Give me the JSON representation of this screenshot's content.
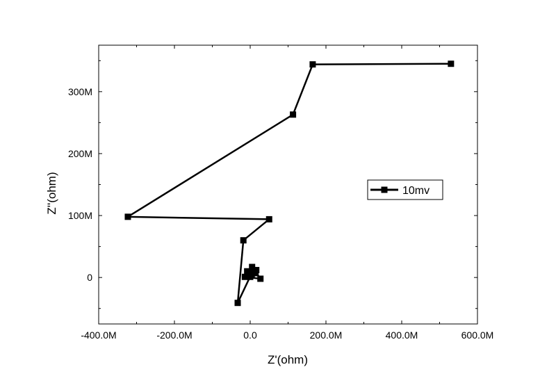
{
  "chart_data": {
    "type": "line",
    "title": "",
    "xlabel": "Z'(ohm)",
    "ylabel": "Z''(ohm)",
    "xlim": [
      -400000000,
      600000000
    ],
    "ylim": [
      -75000000,
      375000000
    ],
    "x_ticks": [
      {
        "value": -400000000,
        "label": "-400.0M"
      },
      {
        "value": -200000000,
        "label": "-200.0M"
      },
      {
        "value": 0,
        "label": "0.0"
      },
      {
        "value": 200000000,
        "label": "200.0M"
      },
      {
        "value": 400000000,
        "label": "400.0M"
      },
      {
        "value": 600000000,
        "label": "600.0M"
      }
    ],
    "y_ticks": [
      {
        "value": 0,
        "label": "0"
      },
      {
        "value": 100000000,
        "label": "100M"
      },
      {
        "value": 200000000,
        "label": "200M"
      },
      {
        "value": 300000000,
        "label": "300M"
      }
    ],
    "grid": false,
    "legend_position": "right",
    "series": [
      {
        "name": "10mv",
        "color": "#000000",
        "marker": "square",
        "points": [
          [
            530000000,
            345000000
          ],
          [
            165000000,
            344000000
          ],
          [
            113000000,
            263000000
          ],
          [
            -323000000,
            98000000
          ],
          [
            50000000,
            94000000
          ],
          [
            -18000000,
            60000000
          ],
          [
            -33000000,
            -41000000
          ],
          [
            8000000,
            12000000
          ],
          [
            -14000000,
            1000000
          ],
          [
            27000000,
            -2000000
          ],
          [
            5000000,
            17000000
          ],
          [
            14000000,
            7000000
          ],
          [
            0,
            1000000
          ],
          [
            -8000000,
            10000000
          ],
          [
            16000000,
            12000000
          ],
          [
            4000000,
            3000000
          ]
        ]
      }
    ]
  }
}
